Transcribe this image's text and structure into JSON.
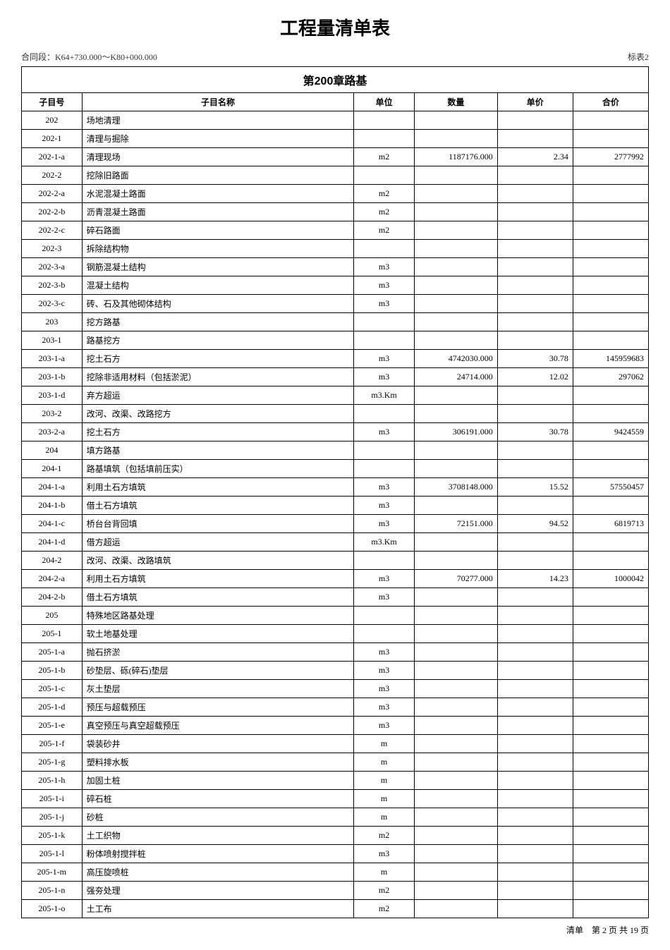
{
  "title": "工程量清单表",
  "contract_section": "合同段：K64+730.000～K80+000.000",
  "table_label": "标表2",
  "section_title": "第200章路基",
  "columns": {
    "id": "子目号",
    "name": "子目名称",
    "unit": "单位",
    "qty": "数量",
    "price": "单价",
    "total": "合价"
  },
  "rows": [
    {
      "id": "202",
      "name": "场地清理",
      "unit": "",
      "qty": "",
      "price": "",
      "total": ""
    },
    {
      "id": "202-1",
      "name": "清理与掘除",
      "unit": "",
      "qty": "",
      "price": "",
      "total": ""
    },
    {
      "id": "202-1-a",
      "name": "清理现场",
      "unit": "m2",
      "qty": "1187176.000",
      "price": "2.34",
      "total": "2777992"
    },
    {
      "id": "202-2",
      "name": "挖除旧路面",
      "unit": "",
      "qty": "",
      "price": "",
      "total": ""
    },
    {
      "id": "202-2-a",
      "name": "水泥混凝土路面",
      "unit": "m2",
      "qty": "",
      "price": "",
      "total": ""
    },
    {
      "id": "202-2-b",
      "name": "沥青混凝土路面",
      "unit": "m2",
      "qty": "",
      "price": "",
      "total": ""
    },
    {
      "id": "202-2-c",
      "name": "碎石路面",
      "unit": "m2",
      "qty": "",
      "price": "",
      "total": ""
    },
    {
      "id": "202-3",
      "name": "拆除结构物",
      "unit": "",
      "qty": "",
      "price": "",
      "total": ""
    },
    {
      "id": "202-3-a",
      "name": "钢筋混凝土结构",
      "unit": "m3",
      "qty": "",
      "price": "",
      "total": ""
    },
    {
      "id": "202-3-b",
      "name": "混凝土结构",
      "unit": "m3",
      "qty": "",
      "price": "",
      "total": ""
    },
    {
      "id": "202-3-c",
      "name": "砖、石及其他砌体结构",
      "unit": "m3",
      "qty": "",
      "price": "",
      "total": ""
    },
    {
      "id": "203",
      "name": "挖方路基",
      "unit": "",
      "qty": "",
      "price": "",
      "total": ""
    },
    {
      "id": "203-1",
      "name": "路基挖方",
      "unit": "",
      "qty": "",
      "price": "",
      "total": ""
    },
    {
      "id": "203-1-a",
      "name": "挖土石方",
      "unit": "m3",
      "qty": "4742030.000",
      "price": "30.78",
      "total": "145959683"
    },
    {
      "id": "203-1-b",
      "name": "挖除非适用材料（包括淤泥）",
      "unit": "m3",
      "qty": "24714.000",
      "price": "12.02",
      "total": "297062"
    },
    {
      "id": "203-1-d",
      "name": "弃方超运",
      "unit": "m3.Km",
      "qty": "",
      "price": "",
      "total": ""
    },
    {
      "id": "203-2",
      "name": "改河、改渠、改路挖方",
      "unit": "",
      "qty": "",
      "price": "",
      "total": ""
    },
    {
      "id": "203-2-a",
      "name": "挖土石方",
      "unit": "m3",
      "qty": "306191.000",
      "price": "30.78",
      "total": "9424559"
    },
    {
      "id": "204",
      "name": "填方路基",
      "unit": "",
      "qty": "",
      "price": "",
      "total": ""
    },
    {
      "id": "204-1",
      "name": "路基填筑（包括填前压实）",
      "unit": "",
      "qty": "",
      "price": "",
      "total": ""
    },
    {
      "id": "204-1-a",
      "name": "利用土石方填筑",
      "unit": "m3",
      "qty": "3708148.000",
      "price": "15.52",
      "total": "57550457"
    },
    {
      "id": "204-1-b",
      "name": "借土石方填筑",
      "unit": "m3",
      "qty": "",
      "price": "",
      "total": ""
    },
    {
      "id": "204-1-c",
      "name": "桥台台背回填",
      "unit": "m3",
      "qty": "72151.000",
      "price": "94.52",
      "total": "6819713"
    },
    {
      "id": "204-1-d",
      "name": "借方超运",
      "unit": "m3.Km",
      "qty": "",
      "price": "",
      "total": ""
    },
    {
      "id": "204-2",
      "name": "改河、改渠、改路填筑",
      "unit": "",
      "qty": "",
      "price": "",
      "total": ""
    },
    {
      "id": "204-2-a",
      "name": "利用土石方填筑",
      "unit": "m3",
      "qty": "70277.000",
      "price": "14.23",
      "total": "1000042"
    },
    {
      "id": "204-2-b",
      "name": "借土石方填筑",
      "unit": "m3",
      "qty": "",
      "price": "",
      "total": ""
    },
    {
      "id": "205",
      "name": "特殊地区路基处理",
      "unit": "",
      "qty": "",
      "price": "",
      "total": ""
    },
    {
      "id": "205-1",
      "name": "软土地基处理",
      "unit": "",
      "qty": "",
      "price": "",
      "total": ""
    },
    {
      "id": "205-1-a",
      "name": "抛石挤淤",
      "unit": "m3",
      "qty": "",
      "price": "",
      "total": ""
    },
    {
      "id": "205-1-b",
      "name": "砂垫层、砾(碎石)垫层",
      "unit": "m3",
      "qty": "",
      "price": "",
      "total": ""
    },
    {
      "id": "205-1-c",
      "name": "灰土垫层",
      "unit": "m3",
      "qty": "",
      "price": "",
      "total": ""
    },
    {
      "id": "205-1-d",
      "name": "预压与超载预压",
      "unit": "m3",
      "qty": "",
      "price": "",
      "total": ""
    },
    {
      "id": "205-1-e",
      "name": "真空预压与真空超载预压",
      "unit": "m3",
      "qty": "",
      "price": "",
      "total": ""
    },
    {
      "id": "205-1-f",
      "name": "袋装砂井",
      "unit": "m",
      "qty": "",
      "price": "",
      "total": ""
    },
    {
      "id": "205-1-g",
      "name": "塑料排水板",
      "unit": "m",
      "qty": "",
      "price": "",
      "total": ""
    },
    {
      "id": "205-1-h",
      "name": "加固土桩",
      "unit": "m",
      "qty": "",
      "price": "",
      "total": ""
    },
    {
      "id": "205-1-i",
      "name": "碎石桩",
      "unit": "m",
      "qty": "",
      "price": "",
      "total": ""
    },
    {
      "id": "205-1-j",
      "name": "砂桩",
      "unit": "m",
      "qty": "",
      "price": "",
      "total": ""
    },
    {
      "id": "205-1-k",
      "name": "土工织物",
      "unit": "m2",
      "qty": "",
      "price": "",
      "total": ""
    },
    {
      "id": "205-1-l",
      "name": "粉体喷射搅拌桩",
      "unit": "m3",
      "qty": "",
      "price": "",
      "total": ""
    },
    {
      "id": "205-1-m",
      "name": "高压旋喷桩",
      "unit": "m",
      "qty": "",
      "price": "",
      "total": ""
    },
    {
      "id": "205-1-n",
      "name": "强夯处理",
      "unit": "m2",
      "qty": "",
      "price": "",
      "total": ""
    },
    {
      "id": "205-1-o",
      "name": "土工布",
      "unit": "m2",
      "qty": "",
      "price": "",
      "total": ""
    }
  ],
  "footer": "清单　第 2 页 共 19 页"
}
